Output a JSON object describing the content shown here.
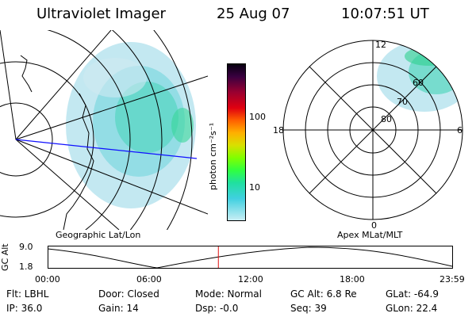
{
  "header": {
    "instrument": "Ultraviolet Imager",
    "date": "25 Aug 07",
    "time": "10:07:51 UT"
  },
  "colorbar": {
    "label": "photon cm⁻²s⁻¹",
    "ticks": [
      "100",
      "10"
    ]
  },
  "left_panel": {
    "caption": "Geographic Lat/Lon"
  },
  "right_panel": {
    "caption": "Apex MLat/MLT",
    "mlt_labels": {
      "top": "12",
      "left": "18",
      "right": "6",
      "bottom": "0"
    },
    "lat_labels": [
      "80",
      "70",
      "60"
    ]
  },
  "altitude_plot": {
    "axis_label": "GC Alt",
    "y_ticks": [
      "9.0",
      "1.8"
    ],
    "x_ticks": [
      "00:00",
      "06:00",
      "12:00",
      "18:00",
      "23:59"
    ],
    "current_marker_hours": 10.13
  },
  "status": {
    "flt": "Flt: LBHL",
    "ip": "IP: 36.0",
    "door": "Door: Closed",
    "gain": "Gain: 14",
    "mode": "Mode: Normal",
    "dsp": "Dsp:   -0.0",
    "gc_alt": "GC Alt: 6.8 Re",
    "seq": "Seq: 39",
    "glat": "GLat:  -64.9",
    "glon": "GLon:  22.4"
  },
  "colors": {
    "sight_line": "#1010ff",
    "time_marker": "#e01010",
    "aurora_low": "#9ad8e8",
    "aurora_high": "#30d0a0"
  }
}
